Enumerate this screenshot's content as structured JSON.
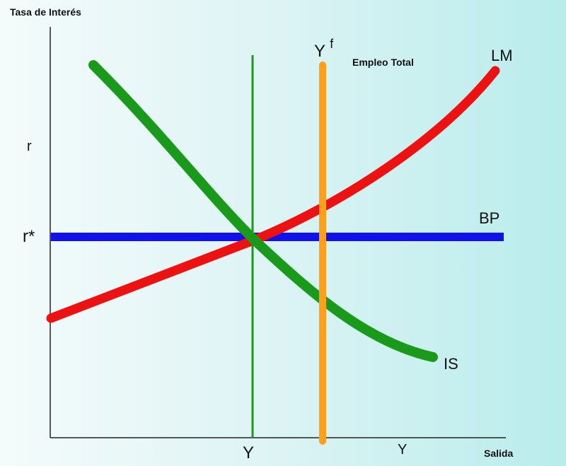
{
  "axes": {
    "y_title": "Tasa de Interés",
    "x_title": "Salida",
    "y_tick_r": "r",
    "y_tick_rstar": "r*",
    "x_tick_y_eq": "Y",
    "x_tick_y": "Y"
  },
  "curves": {
    "lm": {
      "label": "LM",
      "color": "#ee1111"
    },
    "is": {
      "label": "IS",
      "color": "#1a9a1a"
    },
    "bp": {
      "label": "BP",
      "color": "#1111ee"
    },
    "yf": {
      "label_base": "Y",
      "label_sup": "f",
      "color": "#ff9f1a"
    },
    "y_line": {
      "color": "#1a9a1a"
    }
  },
  "annotations": {
    "full_employment": "Empleo Total"
  }
}
